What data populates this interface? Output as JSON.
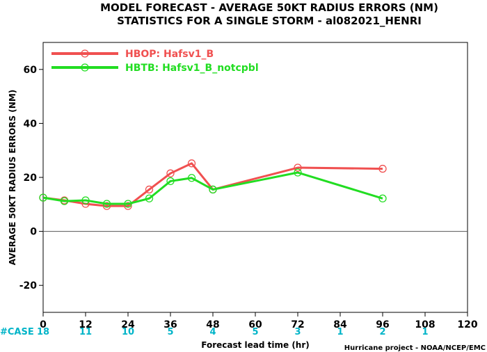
{
  "chart_data": {
    "type": "line",
    "title": "MODEL FORECAST - AVERAGE 50KT RADIUS ERRORS (NM)",
    "subtitle": "STATISTICS FOR A SINGLE STORM - al082021_HENRI",
    "xlabel": "Forecast lead time (hr)",
    "ylabel": "AVERAGE 50KT RADIUS ERRORS (NM)",
    "xlim": [
      0,
      120
    ],
    "ylim": [
      -30,
      70
    ],
    "xticks": [
      "0",
      "12",
      "24",
      "36",
      "48",
      "60",
      "72",
      "84",
      "96",
      "108",
      "120"
    ],
    "yticks": [
      "-20",
      "0",
      "20",
      "40",
      "60"
    ],
    "legend_position": "top-left",
    "series": [
      {
        "name": "HBOP: Hafsv1_B",
        "color": "#f05050",
        "x": [
          0,
          6,
          12,
          18,
          24,
          30,
          36,
          42,
          48,
          72,
          96
        ],
        "y": [
          12.5,
          11.5,
          10.2,
          9.4,
          9.4,
          15.5,
          21.5,
          25.2,
          15.5,
          23.6,
          23.2
        ]
      },
      {
        "name": "HBTB: Hafsv1_B_notcpbl",
        "color": "#22dd22",
        "x": [
          0,
          6,
          12,
          18,
          24,
          30,
          36,
          42,
          48,
          72,
          96
        ],
        "y": [
          12.5,
          11.2,
          11.5,
          10.2,
          10.2,
          12.2,
          18.6,
          19.8,
          15.5,
          21.8,
          12.2
        ]
      }
    ],
    "case_label": "#CASE",
    "case_counts": [
      {
        "x": 0,
        "n": "18"
      },
      {
        "x": 12,
        "n": "11"
      },
      {
        "x": 24,
        "n": "10"
      },
      {
        "x": 36,
        "n": "5"
      },
      {
        "x": 48,
        "n": "4"
      },
      {
        "x": 60,
        "n": "5"
      },
      {
        "x": 72,
        "n": "3"
      },
      {
        "x": 84,
        "n": "1"
      },
      {
        "x": 96,
        "n": "2"
      },
      {
        "x": 108,
        "n": "1"
      }
    ],
    "case_color": "#00b4c8",
    "credit": "Hurricane project - NOAA/NCEP/EMC"
  }
}
